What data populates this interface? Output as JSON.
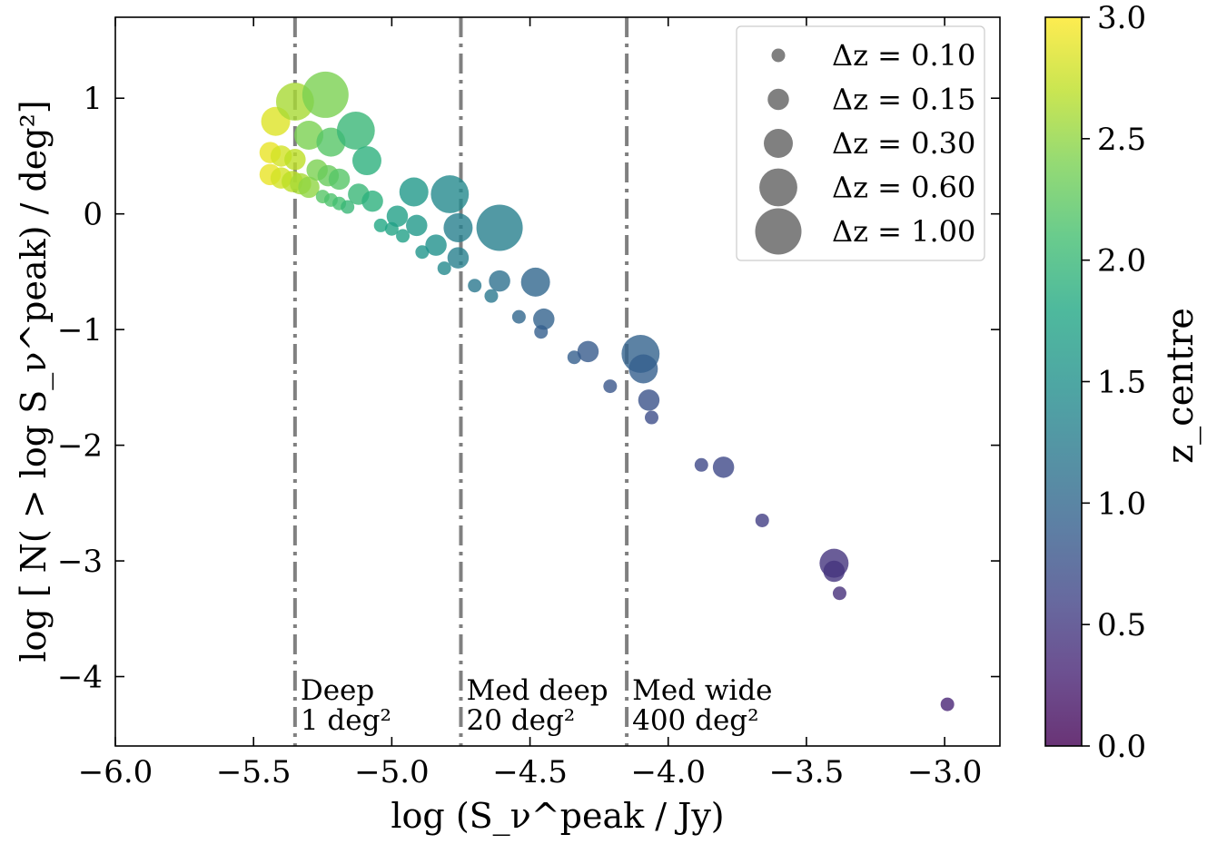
{
  "chart_data": {
    "type": "scatter",
    "xlabel": "log (S_ν^peak / Jy)",
    "ylabel": "log [ N( > log S_ν^peak) / deg²]",
    "xlim": [
      -6.0,
      -2.8
    ],
    "ylim": [
      -4.6,
      1.7
    ],
    "x_ticks": [
      -6.0,
      -5.5,
      -5.0,
      -4.5,
      -4.0,
      -3.5,
      -3.0
    ],
    "x_tick_labels": [
      "−6.0",
      "−5.5",
      "−5.0",
      "−4.5",
      "−4.0",
      "−3.5",
      "−3.0"
    ],
    "y_ticks": [
      -4,
      -3,
      -2,
      -1,
      0,
      1
    ],
    "y_tick_labels": [
      "−4",
      "−3",
      "−2",
      "−1",
      "0",
      "1"
    ],
    "colorbar": {
      "label": "z_centre",
      "range": [
        0.0,
        3.0
      ],
      "ticks": [
        0.0,
        0.5,
        1.0,
        1.5,
        2.0,
        2.5,
        3.0
      ],
      "tick_labels": [
        "0.0",
        "0.5",
        "1.0",
        "1.5",
        "2.0",
        "2.5",
        "3.0"
      ],
      "colormap": "viridis"
    },
    "survey_lines": [
      {
        "x": -5.35,
        "label_line1": "Deep",
        "label_line2": "1 deg²"
      },
      {
        "x": -4.75,
        "label_line1": "Med deep",
        "label_line2": "20 deg²"
      },
      {
        "x": -4.15,
        "label_line1": "Med wide",
        "label_line2": "400 deg²"
      }
    ],
    "legend": {
      "placement": "top-right",
      "entries": [
        {
          "dz": 0.1,
          "label": "Δz = 0.10"
        },
        {
          "dz": 0.15,
          "label": "Δz = 0.15"
        },
        {
          "dz": 0.3,
          "label": "Δz = 0.30"
        },
        {
          "dz": 0.6,
          "label": "Δz = 0.60"
        },
        {
          "dz": 1.0,
          "label": "Δz = 1.00"
        }
      ]
    },
    "points": [
      {
        "x": -5.44,
        "y": 0.34,
        "z": 2.9,
        "dz": 0.15
      },
      {
        "x": -5.4,
        "y": 0.31,
        "z": 2.8,
        "dz": 0.15
      },
      {
        "x": -5.36,
        "y": 0.28,
        "z": 2.7,
        "dz": 0.15
      },
      {
        "x": -5.33,
        "y": 0.26,
        "z": 2.6,
        "dz": 0.15
      },
      {
        "x": -5.44,
        "y": 0.53,
        "z": 2.9,
        "dz": 0.15
      },
      {
        "x": -5.4,
        "y": 0.5,
        "z": 2.8,
        "dz": 0.15
      },
      {
        "x": -5.35,
        "y": 0.47,
        "z": 2.7,
        "dz": 0.15
      },
      {
        "x": -5.3,
        "y": 0.23,
        "z": 2.5,
        "dz": 0.15
      },
      {
        "x": -5.42,
        "y": 0.8,
        "z": 2.85,
        "dz": 0.3
      },
      {
        "x": -5.35,
        "y": 0.97,
        "z": 2.6,
        "dz": 0.6
      },
      {
        "x": -5.24,
        "y": 1.03,
        "z": 2.4,
        "dz": 1.0
      },
      {
        "x": -5.27,
        "y": 0.38,
        "z": 2.4,
        "dz": 0.15
      },
      {
        "x": -5.23,
        "y": 0.33,
        "z": 2.3,
        "dz": 0.15
      },
      {
        "x": -5.19,
        "y": 0.3,
        "z": 2.2,
        "dz": 0.15
      },
      {
        "x": -5.3,
        "y": 0.68,
        "z": 2.4,
        "dz": 0.3
      },
      {
        "x": -5.22,
        "y": 0.62,
        "z": 2.2,
        "dz": 0.3
      },
      {
        "x": -5.13,
        "y": 0.72,
        "z": 2.0,
        "dz": 0.6
      },
      {
        "x": -5.09,
        "y": 0.46,
        "z": 1.9,
        "dz": 0.3
      },
      {
        "x": -5.25,
        "y": 0.15,
        "z": 2.2,
        "dz": 0.1
      },
      {
        "x": -5.22,
        "y": 0.12,
        "z": 2.15,
        "dz": 0.1
      },
      {
        "x": -5.19,
        "y": 0.09,
        "z": 2.1,
        "dz": 0.1
      },
      {
        "x": -5.16,
        "y": 0.06,
        "z": 2.0,
        "dz": 0.1
      },
      {
        "x": -5.12,
        "y": 0.17,
        "z": 2.0,
        "dz": 0.15
      },
      {
        "x": -5.07,
        "y": 0.11,
        "z": 1.9,
        "dz": 0.15
      },
      {
        "x": -5.04,
        "y": -0.1,
        "z": 1.8,
        "dz": 0.1
      },
      {
        "x": -5.0,
        "y": -0.13,
        "z": 1.75,
        "dz": 0.1
      },
      {
        "x": -4.98,
        "y": -0.02,
        "z": 1.7,
        "dz": 0.15
      },
      {
        "x": -4.96,
        "y": -0.19,
        "z": 1.7,
        "dz": 0.1
      },
      {
        "x": -4.92,
        "y": 0.19,
        "z": 1.6,
        "dz": 0.3
      },
      {
        "x": -4.91,
        "y": -0.1,
        "z": 1.6,
        "dz": 0.15
      },
      {
        "x": -4.89,
        "y": -0.33,
        "z": 1.55,
        "dz": 0.1
      },
      {
        "x": -4.84,
        "y": -0.27,
        "z": 1.5,
        "dz": 0.15
      },
      {
        "x": -4.81,
        "y": -0.47,
        "z": 1.4,
        "dz": 0.1
      },
      {
        "x": -4.79,
        "y": 0.17,
        "z": 1.4,
        "dz": 0.6
      },
      {
        "x": -4.76,
        "y": -0.12,
        "z": 1.3,
        "dz": 0.3
      },
      {
        "x": -4.76,
        "y": -0.38,
        "z": 1.3,
        "dz": 0.15
      },
      {
        "x": -4.7,
        "y": -0.62,
        "z": 1.2,
        "dz": 0.1
      },
      {
        "x": -4.64,
        "y": -0.71,
        "z": 1.2,
        "dz": 0.1
      },
      {
        "x": -4.61,
        "y": -0.12,
        "z": 1.3,
        "dz": 1.0
      },
      {
        "x": -4.61,
        "y": -0.58,
        "z": 1.1,
        "dz": 0.15
      },
      {
        "x": -4.48,
        "y": -0.59,
        "z": 1.0,
        "dz": 0.3
      },
      {
        "x": -4.54,
        "y": -0.89,
        "z": 1.0,
        "dz": 0.1
      },
      {
        "x": -4.45,
        "y": -0.91,
        "z": 0.95,
        "dz": 0.15
      },
      {
        "x": -4.46,
        "y": -1.02,
        "z": 0.9,
        "dz": 0.1
      },
      {
        "x": -4.34,
        "y": -1.24,
        "z": 0.9,
        "dz": 0.1
      },
      {
        "x": -4.29,
        "y": -1.19,
        "z": 0.85,
        "dz": 0.15
      },
      {
        "x": -4.21,
        "y": -1.49,
        "z": 0.8,
        "dz": 0.1
      },
      {
        "x": -4.1,
        "y": -1.21,
        "z": 0.95,
        "dz": 0.6
      },
      {
        "x": -4.09,
        "y": -1.34,
        "z": 0.9,
        "dz": 0.3
      },
      {
        "x": -4.07,
        "y": -1.61,
        "z": 0.75,
        "dz": 0.15
      },
      {
        "x": -4.06,
        "y": -1.76,
        "z": 0.7,
        "dz": 0.1
      },
      {
        "x": -3.88,
        "y": -2.17,
        "z": 0.65,
        "dz": 0.1
      },
      {
        "x": -3.8,
        "y": -2.19,
        "z": 0.65,
        "dz": 0.15
      },
      {
        "x": -3.66,
        "y": -2.65,
        "z": 0.55,
        "dz": 0.1
      },
      {
        "x": -3.4,
        "y": -3.02,
        "z": 0.45,
        "dz": 0.3
      },
      {
        "x": -3.4,
        "y": -3.09,
        "z": 0.45,
        "dz": 0.15
      },
      {
        "x": -3.38,
        "y": -3.28,
        "z": 0.4,
        "dz": 0.1
      },
      {
        "x": -2.99,
        "y": -4.24,
        "z": 0.3,
        "dz": 0.1
      }
    ]
  }
}
